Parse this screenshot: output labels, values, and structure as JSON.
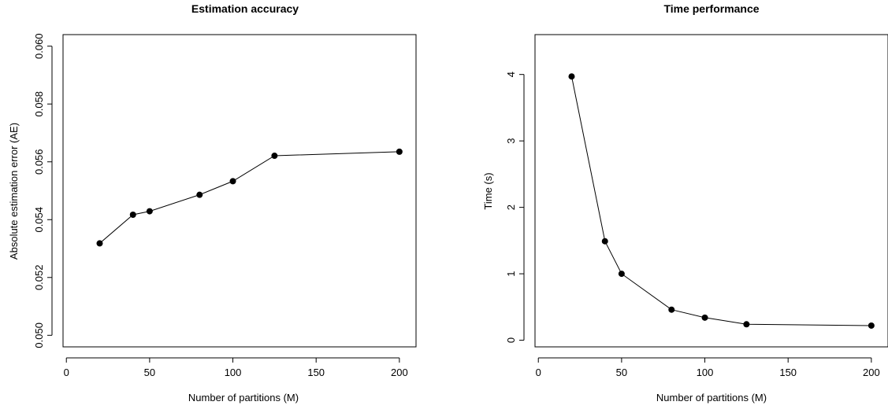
{
  "chart_data": [
    {
      "type": "line",
      "title": "Estimation accuracy",
      "xlabel": "Number of partitions (M)",
      "ylabel": "Absolute estimation error (AE)",
      "xlim": [
        -2,
        210
      ],
      "ylim": [
        0.0496,
        0.0604
      ],
      "xticks": [
        0,
        50,
        100,
        150,
        200
      ],
      "yticks": [
        0.05,
        0.052,
        0.054,
        0.056,
        0.058,
        0.06
      ],
      "xtick_labels": [
        "0",
        "50",
        "100",
        "150",
        "200"
      ],
      "ytick_labels": [
        "0.050",
        "0.052",
        "0.054",
        "0.056",
        "0.058",
        "0.060"
      ],
      "grid": false,
      "legend": "none",
      "x": [
        20,
        40,
        50,
        80,
        100,
        125,
        200
      ],
      "y": [
        0.05318,
        0.05417,
        0.05429,
        0.05486,
        0.05533,
        0.05621,
        0.05635
      ]
    },
    {
      "type": "line",
      "title": "Time performance",
      "xlabel": "Number of partitions (M)",
      "ylabel": "Time (s)",
      "xlim": [
        -2,
        210
      ],
      "ylim": [
        -0.1,
        4.6
      ],
      "xticks": [
        0,
        50,
        100,
        150,
        200
      ],
      "yticks": [
        0,
        1,
        2,
        3,
        4
      ],
      "xtick_labels": [
        "0",
        "50",
        "100",
        "150",
        "200"
      ],
      "ytick_labels": [
        "0",
        "1",
        "2",
        "3",
        "4"
      ],
      "grid": false,
      "legend": "none",
      "x": [
        20,
        40,
        50,
        80,
        100,
        125,
        200
      ],
      "y": [
        3.97,
        1.49,
        1.0,
        0.46,
        0.34,
        0.24,
        0.22
      ]
    }
  ]
}
